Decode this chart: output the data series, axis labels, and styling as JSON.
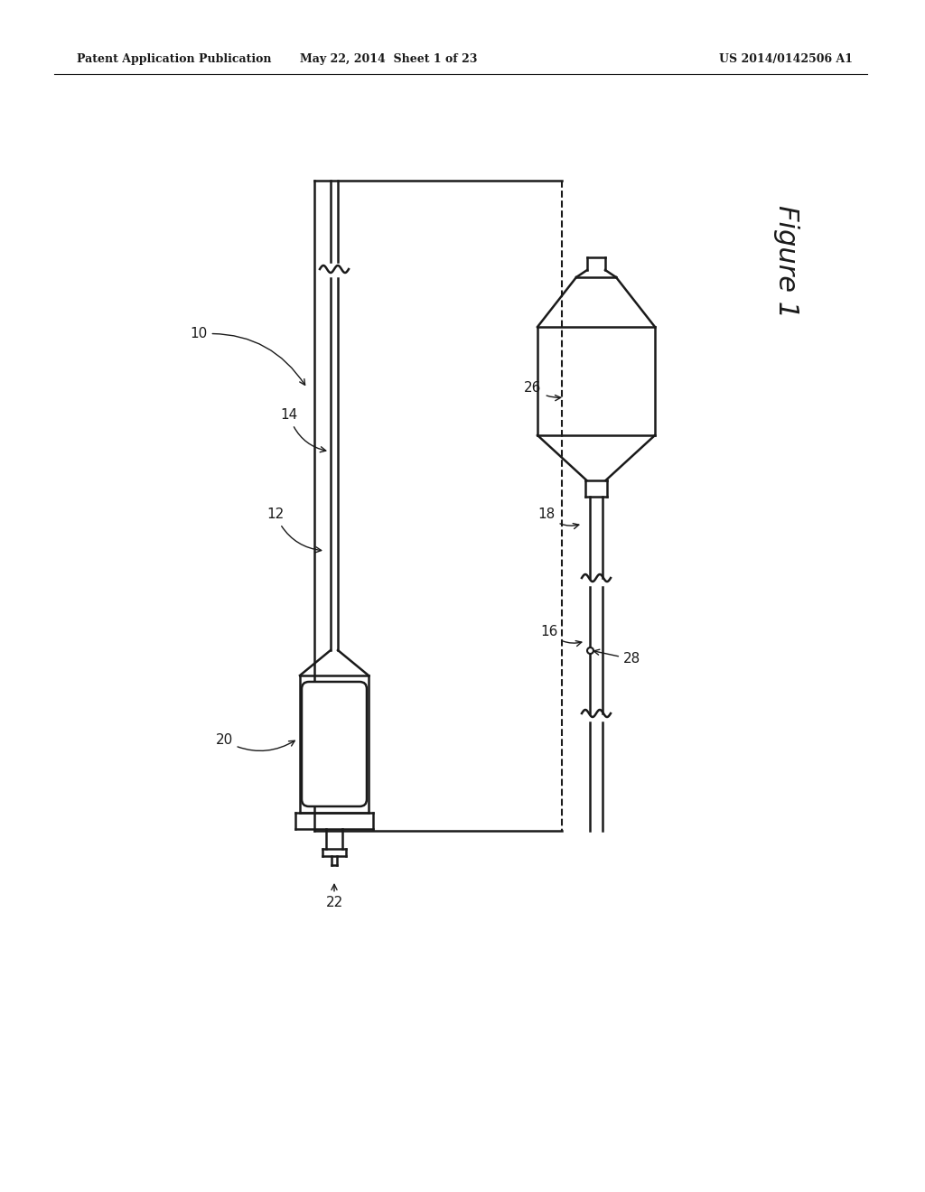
{
  "bg_color": "#ffffff",
  "line_color": "#1a1a1a",
  "header_text1": "Patent Application Publication",
  "header_text2": "May 22, 2014  Sheet 1 of 23",
  "header_text3": "US 2014/0142506 A1",
  "figure_label": "Figure 1"
}
